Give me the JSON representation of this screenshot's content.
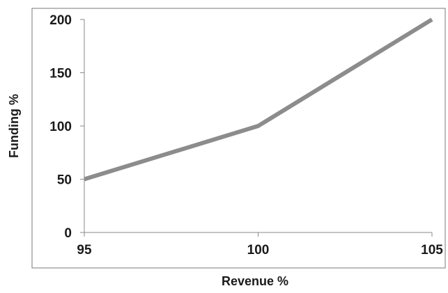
{
  "chart_data": {
    "type": "line",
    "title": "",
    "xlabel": "Revenue %",
    "ylabel": "Funding %",
    "xlim": [
      95,
      105
    ],
    "ylim": [
      0,
      200
    ],
    "xticks": [
      "95",
      "100",
      "105"
    ],
    "yticks": [
      "0",
      "50",
      "100",
      "150",
      "200"
    ],
    "grid": false,
    "legend": "none",
    "series": [
      {
        "x": [
          95,
          100,
          105
        ],
        "y": [
          50,
          100,
          200
        ],
        "color": "#8c8c8c"
      }
    ]
  }
}
